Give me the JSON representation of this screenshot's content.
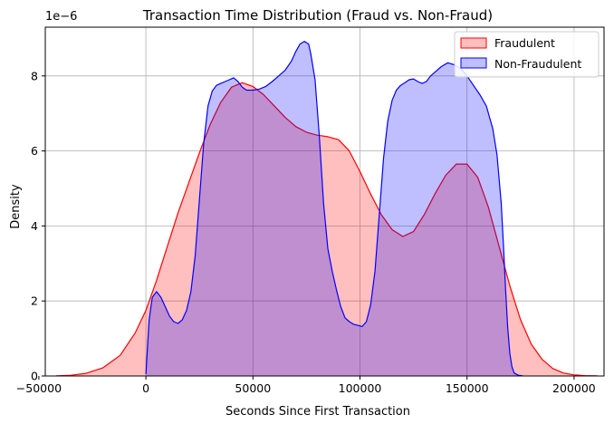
{
  "chart_data": {
    "type": "area",
    "title": "Transaction Time Distribution (Fraud vs. Non-Fraud)",
    "xlabel": "Seconds Since First Transaction",
    "ylabel": "Density",
    "y_offset_label": "1e−6",
    "xlim": [
      -47000,
      214000
    ],
    "ylim": [
      0,
      9.3
    ],
    "x_ticks": [
      -50000,
      0,
      50000,
      100000,
      150000,
      200000
    ],
    "x_tick_labels": [
      "−50000",
      "0",
      "50000",
      "100000",
      "150000",
      "200000"
    ],
    "y_ticks": [
      0,
      2,
      4,
      6,
      8
    ],
    "y_tick_labels": [
      "0",
      "2",
      "4",
      "6",
      "8"
    ],
    "grid": true,
    "legend_position": "top-right",
    "series": [
      {
        "name": "Fraudulent",
        "color": "#ff0000",
        "fill": "#ff0000",
        "x": [
          -42000,
          -35000,
          -28000,
          -20000,
          -12000,
          -5000,
          0,
          5000,
          10000,
          15000,
          20000,
          25000,
          30000,
          35000,
          40000,
          45000,
          50000,
          55000,
          60000,
          65000,
          70000,
          75000,
          80000,
          85000,
          90000,
          95000,
          100000,
          105000,
          110000,
          115000,
          120000,
          125000,
          130000,
          135000,
          140000,
          145000,
          150000,
          155000,
          160000,
          165000,
          170000,
          175000,
          180000,
          185000,
          190000,
          195000,
          200000,
          205000,
          211000
        ],
        "y": [
          0.005,
          0.02,
          0.07,
          0.22,
          0.55,
          1.15,
          1.75,
          2.55,
          3.45,
          4.35,
          5.15,
          5.95,
          6.7,
          7.3,
          7.7,
          7.82,
          7.72,
          7.5,
          7.2,
          6.9,
          6.65,
          6.5,
          6.42,
          6.38,
          6.3,
          6.0,
          5.45,
          4.85,
          4.3,
          3.9,
          3.72,
          3.85,
          4.3,
          4.85,
          5.35,
          5.65,
          5.65,
          5.3,
          4.5,
          3.45,
          2.4,
          1.5,
          0.85,
          0.45,
          0.2,
          0.08,
          0.03,
          0.01,
          0.002
        ]
      },
      {
        "name": "Non-Fraudulent",
        "color": "#0000ff",
        "fill": "#0000ff",
        "x": [
          0,
          1500,
          3000,
          5000,
          7000,
          9000,
          11000,
          13000,
          15000,
          17000,
          19000,
          21000,
          23000,
          25000,
          27000,
          29000,
          31000,
          33000,
          35000,
          37000,
          39000,
          41000,
          43000,
          45000,
          47000,
          50000,
          53000,
          56000,
          59000,
          62000,
          65000,
          68000,
          70000,
          72000,
          74000,
          76000,
          77000,
          79000,
          81000,
          83000,
          85000,
          87000,
          89000,
          91000,
          93000,
          95000,
          97000,
          99000,
          101000,
          103000,
          105000,
          107000,
          109000,
          111000,
          113000,
          115000,
          117000,
          119000,
          121000,
          123000,
          125000,
          127000,
          129000,
          131000,
          133000,
          135000,
          138000,
          141000,
          144000,
          147000,
          150000,
          153000,
          156000,
          159000,
          162000,
          164000,
          166000,
          167000,
          168000,
          169000,
          170000,
          171000,
          172000,
          174000,
          176000
        ],
        "y": [
          0.05,
          1.5,
          2.1,
          2.25,
          2.1,
          1.85,
          1.6,
          1.45,
          1.4,
          1.5,
          1.75,
          2.25,
          3.2,
          4.7,
          6.2,
          7.2,
          7.6,
          7.75,
          7.8,
          7.85,
          7.9,
          7.95,
          7.85,
          7.7,
          7.62,
          7.62,
          7.65,
          7.72,
          7.85,
          8.0,
          8.15,
          8.4,
          8.65,
          8.85,
          8.92,
          8.85,
          8.6,
          7.9,
          6.4,
          4.6,
          3.4,
          2.8,
          2.3,
          1.85,
          1.55,
          1.45,
          1.38,
          1.35,
          1.32,
          1.45,
          1.9,
          2.8,
          4.3,
          5.8,
          6.8,
          7.35,
          7.62,
          7.75,
          7.82,
          7.9,
          7.92,
          7.85,
          7.8,
          7.85,
          8.0,
          8.1,
          8.25,
          8.35,
          8.3,
          8.2,
          8.0,
          7.75,
          7.5,
          7.2,
          6.6,
          5.9,
          4.6,
          3.5,
          2.3,
          1.3,
          0.6,
          0.25,
          0.08,
          0.02,
          0.002
        ]
      }
    ]
  }
}
